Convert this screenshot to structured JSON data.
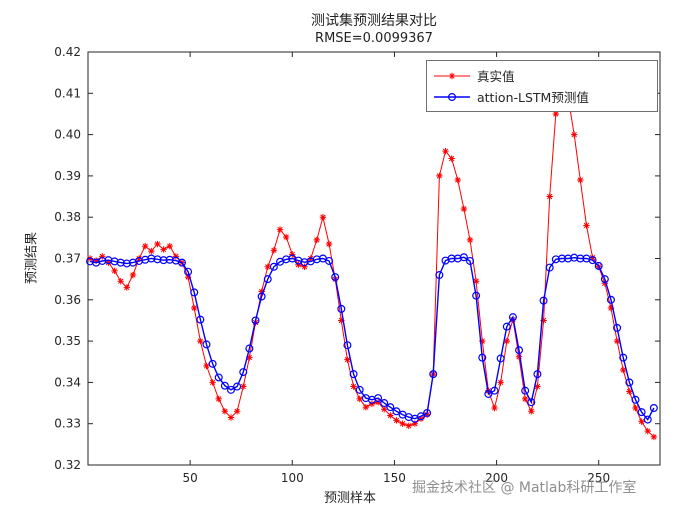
{
  "watermark": "掘金技术社区 @ Matlab科研工作室",
  "chart_data": {
    "type": "line",
    "title": "测试集预测结果对比",
    "subtitle": "RMSE=0.0099367",
    "xlabel": "预测样本",
    "ylabel": "预测结果",
    "xlim": [
      0,
      280
    ],
    "ylim": [
      0.32,
      0.42
    ],
    "xticks": [
      50,
      100,
      150,
      200,
      250
    ],
    "yticks": [
      0.32,
      0.33,
      0.34,
      0.35,
      0.36,
      0.37,
      0.38,
      0.39,
      0.4,
      0.41,
      0.42
    ],
    "grid": false,
    "legend_position": "top-right",
    "x": [
      1,
      4,
      7,
      10,
      13,
      16,
      19,
      22,
      25,
      28,
      31,
      34,
      37,
      40,
      43,
      46,
      49,
      52,
      55,
      58,
      61,
      64,
      67,
      70,
      73,
      76,
      79,
      82,
      85,
      88,
      91,
      94,
      97,
      100,
      103,
      106,
      109,
      112,
      115,
      118,
      121,
      124,
      127,
      130,
      133,
      136,
      139,
      142,
      145,
      148,
      151,
      154,
      157,
      160,
      163,
      166,
      169,
      172,
      175,
      178,
      181,
      184,
      187,
      190,
      193,
      196,
      199,
      202,
      205,
      208,
      211,
      214,
      217,
      220,
      223,
      226,
      229,
      232,
      235,
      238,
      241,
      244,
      247,
      250,
      253,
      256,
      259,
      262,
      265,
      268,
      271,
      274,
      277
    ],
    "series": [
      {
        "name": "真实值",
        "color": "#ff0000",
        "marker": "asterisk",
        "values": [
          0.37,
          0.3695,
          0.3705,
          0.369,
          0.367,
          0.3645,
          0.363,
          0.366,
          0.37,
          0.373,
          0.3718,
          0.3735,
          0.3722,
          0.373,
          0.3705,
          0.369,
          0.3655,
          0.358,
          0.35,
          0.344,
          0.34,
          0.336,
          0.333,
          0.3315,
          0.333,
          0.339,
          0.346,
          0.3545,
          0.362,
          0.368,
          0.372,
          0.377,
          0.3752,
          0.371,
          0.3685,
          0.368,
          0.37,
          0.3745,
          0.38,
          0.3735,
          0.365,
          0.355,
          0.3455,
          0.339,
          0.336,
          0.334,
          0.3348,
          0.3352,
          0.3335,
          0.332,
          0.3308,
          0.33,
          0.3295,
          0.33,
          0.3312,
          0.3322,
          0.342,
          0.39,
          0.396,
          0.3942,
          0.389,
          0.382,
          0.3745,
          0.3645,
          0.35,
          0.338,
          0.3338,
          0.34,
          0.35,
          0.3552,
          0.3462,
          0.336,
          0.333,
          0.339,
          0.355,
          0.385,
          0.405,
          0.413,
          0.409,
          0.4,
          0.389,
          0.378,
          0.3702,
          0.368,
          0.364,
          0.358,
          0.35,
          0.343,
          0.3378,
          0.3338,
          0.3305,
          0.3282,
          0.3268
        ]
      },
      {
        "name": "attion-LSTM预测值",
        "color": "#0000ff",
        "marker": "circle",
        "values": [
          0.3693,
          0.369,
          0.3694,
          0.3696,
          0.3693,
          0.369,
          0.3688,
          0.369,
          0.3694,
          0.3697,
          0.37,
          0.3698,
          0.3696,
          0.3697,
          0.3695,
          0.369,
          0.3668,
          0.3618,
          0.3552,
          0.3492,
          0.3445,
          0.3412,
          0.3392,
          0.3382,
          0.339,
          0.3425,
          0.3482,
          0.355,
          0.3608,
          0.365,
          0.368,
          0.3692,
          0.3698,
          0.37,
          0.3695,
          0.3691,
          0.3693,
          0.3698,
          0.37,
          0.3694,
          0.3655,
          0.3578,
          0.349,
          0.342,
          0.3382,
          0.3362,
          0.3358,
          0.3362,
          0.335,
          0.334,
          0.333,
          0.3322,
          0.3316,
          0.3312,
          0.3318,
          0.3326,
          0.342,
          0.366,
          0.3695,
          0.37,
          0.37,
          0.3703,
          0.3694,
          0.361,
          0.346,
          0.3372,
          0.338,
          0.3458,
          0.3535,
          0.3558,
          0.3478,
          0.338,
          0.3352,
          0.342,
          0.3598,
          0.3678,
          0.3698,
          0.37,
          0.37,
          0.3702,
          0.37,
          0.37,
          0.3696,
          0.3682,
          0.365,
          0.36,
          0.3532,
          0.346,
          0.34,
          0.3358,
          0.3328,
          0.331,
          0.3338
        ]
      }
    ]
  }
}
